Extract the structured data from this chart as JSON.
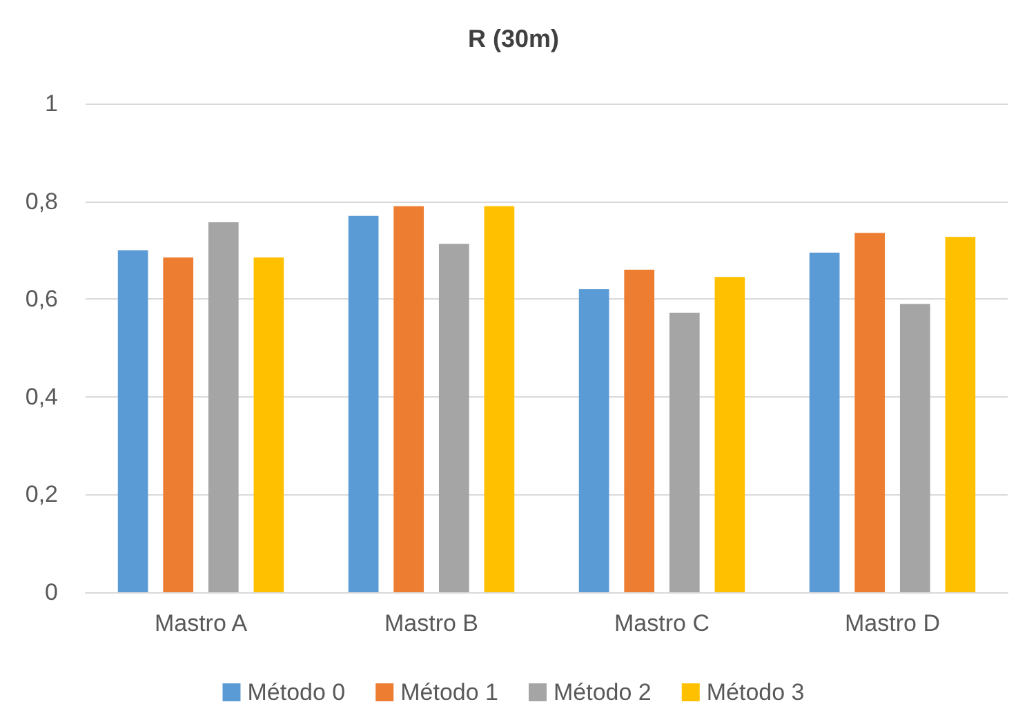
{
  "chart_data": {
    "type": "bar",
    "title": "R (30m)",
    "categories": [
      "Mastro A",
      "Mastro B",
      "Mastro C",
      "Mastro D"
    ],
    "series": [
      {
        "name": "Método 0",
        "color": "#5b9bd5",
        "values": [
          0.7,
          0.77,
          0.62,
          0.695
        ]
      },
      {
        "name": "Método 1",
        "color": "#ed7d31",
        "values": [
          0.685,
          0.79,
          0.66,
          0.735
        ]
      },
      {
        "name": "Método 2",
        "color": "#a5a5a5",
        "values": [
          0.757,
          0.713,
          0.572,
          0.59
        ]
      },
      {
        "name": "Método 3",
        "color": "#ffc000",
        "values": [
          0.685,
          0.79,
          0.645,
          0.727
        ]
      }
    ],
    "ylim": [
      0,
      1
    ],
    "yticks": [
      0,
      {
        "value": 0.2,
        "label": "0,2"
      },
      {
        "value": 0.4,
        "label": "0,4"
      },
      {
        "value": 0.6,
        "label": "0,6"
      },
      {
        "value": 0.8,
        "label": "0,8"
      },
      1
    ],
    "grid": "y",
    "legend": "bottom"
  }
}
